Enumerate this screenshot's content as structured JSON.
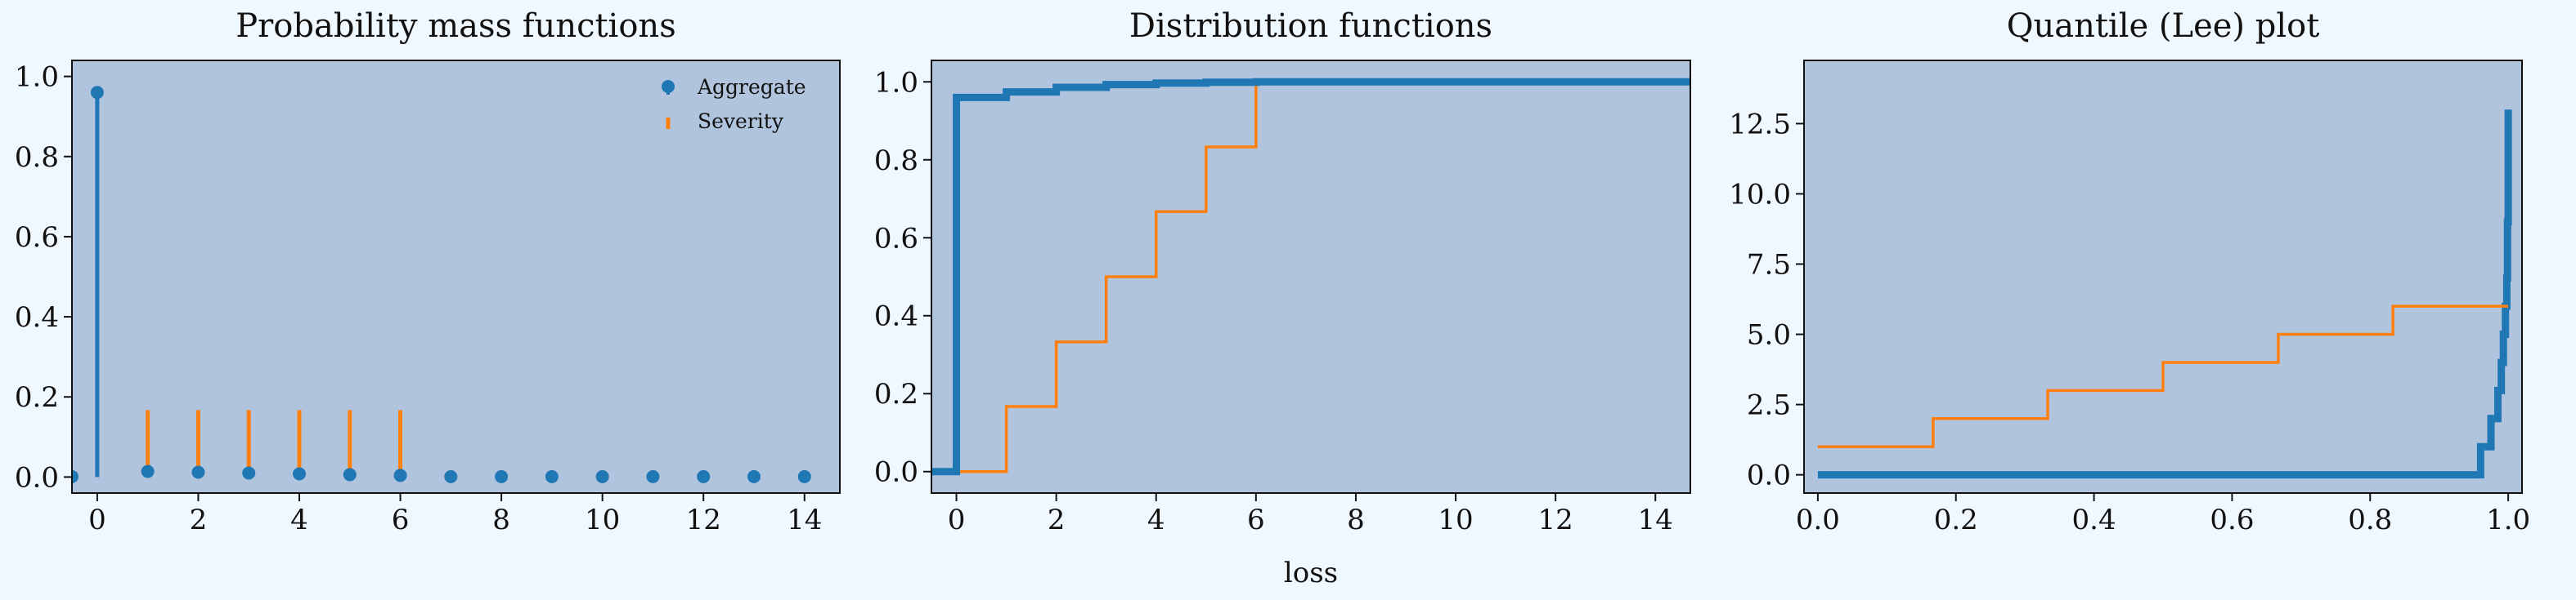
{
  "figure": {
    "xlabel": "loss"
  },
  "colors": {
    "background": "#f0f8ff",
    "axes_face": "#b0c4de",
    "aggregate": "#1f77b4",
    "severity": "#ff7f0e"
  },
  "chart_data": [
    {
      "type": "stem",
      "title": "Probability mass functions",
      "xlabel": "",
      "ylabel": "",
      "xlim": [
        -0.5,
        14.7
      ],
      "ylim": [
        -0.04,
        1.04
      ],
      "xticks": [
        0,
        2,
        4,
        6,
        8,
        10,
        12,
        14
      ],
      "xtick_labels": [
        "0",
        "2",
        "4",
        "6",
        "8",
        "10",
        "12",
        "14"
      ],
      "yticks": [
        0.0,
        0.2,
        0.4,
        0.6,
        0.8,
        1.0
      ],
      "ytick_labels": [
        "0.0",
        "0.2",
        "0.4",
        "0.6",
        "0.8",
        "1.0"
      ],
      "legend": {
        "position": "top-right",
        "entries": [
          "Aggregate",
          "Severity"
        ]
      },
      "series": [
        {
          "name": "Aggregate",
          "color": "#1f77b4",
          "x": [
            -0.5,
            0,
            1,
            2,
            3,
            4,
            5,
            6,
            7,
            8,
            9,
            10,
            11,
            12,
            13,
            14
          ],
          "y": [
            0.001,
            0.96,
            0.014,
            0.012,
            0.01,
            0.008,
            0.006,
            0.004,
            0.001,
            0.001,
            0.001,
            0.001,
            0.001,
            0.001,
            0.001,
            0.001
          ]
        },
        {
          "name": "Severity",
          "color": "#ff7f0e",
          "x": [
            1,
            2,
            3,
            4,
            5,
            6
          ],
          "y": [
            0.167,
            0.167,
            0.167,
            0.167,
            0.167,
            0.167
          ]
        }
      ]
    },
    {
      "type": "step",
      "title": "Distribution functions",
      "xlabel": "",
      "ylabel": "",
      "xlim": [
        -0.5,
        14.7
      ],
      "ylim": [
        -0.055,
        1.055
      ],
      "xticks": [
        0,
        2,
        4,
        6,
        8,
        10,
        12,
        14
      ],
      "xtick_labels": [
        "0",
        "2",
        "4",
        "6",
        "8",
        "10",
        "12",
        "14"
      ],
      "yticks": [
        0.0,
        0.2,
        0.4,
        0.6,
        0.8,
        1.0
      ],
      "ytick_labels": [
        "0.0",
        "0.2",
        "0.4",
        "0.6",
        "0.8",
        "1.0"
      ],
      "series": [
        {
          "color": "#1f77b4",
          "x": [
            -0.5,
            0,
            1,
            2,
            3,
            4,
            5,
            6,
            14.7
          ],
          "y": [
            0.0,
            0.96,
            0.974,
            0.986,
            0.993,
            0.997,
            0.999,
            1.0,
            1.0
          ]
        },
        {
          "color": "#ff7f0e",
          "x": [
            -0.5,
            1,
            2,
            3,
            4,
            5,
            6,
            7,
            14.7
          ],
          "y": [
            0.0,
            0.167,
            0.333,
            0.5,
            0.667,
            0.833,
            1.0,
            1.005,
            1.005
          ]
        }
      ]
    },
    {
      "type": "step",
      "title": "Quantile (Lee) plot",
      "xlabel": "",
      "ylabel": "",
      "xlim": [
        -0.02,
        1.02
      ],
      "ylim": [
        -0.65,
        14.75
      ],
      "xticks": [
        0.0,
        0.2,
        0.4,
        0.6,
        0.8,
        1.0
      ],
      "xtick_labels": [
        "0.0",
        "0.2",
        "0.4",
        "0.6",
        "0.8",
        "1.0"
      ],
      "yticks": [
        0.0,
        2.5,
        5.0,
        7.5,
        10.0,
        12.5
      ],
      "ytick_labels": [
        "0.0",
        "2.5",
        "5.0",
        "7.5",
        "10.0",
        "12.5"
      ],
      "series": [
        {
          "color": "#1f77b4",
          "x": [
            0.0,
            0.96,
            0.975,
            0.985,
            0.99,
            0.993,
            0.996,
            0.998,
            0.999,
            1.0
          ],
          "y": [
            0.0,
            1.0,
            2.0,
            3.0,
            4.0,
            5.0,
            6.0,
            7.0,
            9.0,
            13.0
          ]
        },
        {
          "color": "#ff7f0e",
          "x": [
            0.0,
            0.167,
            0.333,
            0.5,
            0.667,
            0.833,
            1.0
          ],
          "y": [
            1.0,
            2.0,
            3.0,
            4.0,
            5.0,
            6.0,
            6.0
          ]
        }
      ]
    }
  ]
}
